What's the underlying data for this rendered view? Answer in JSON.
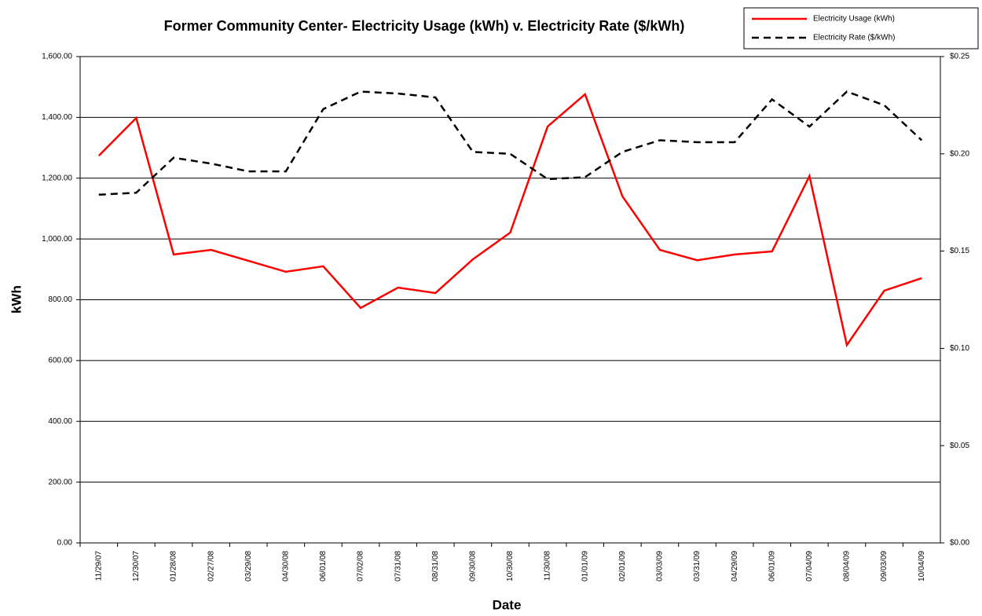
{
  "chart_data": {
    "type": "line",
    "title": "Former Community Center- Electricity Usage (kWh) v. Electricity Rate ($/kWh)",
    "xlabel": "Date",
    "ylabel": "kWh",
    "categories": [
      "11/29/07",
      "12/30/07",
      "01/28/08",
      "02/27/08",
      "03/29/08",
      "04/30/08",
      "06/01/08",
      "07/02/08",
      "07/31/08",
      "08/31/08",
      "09/30/08",
      "10/30/08",
      "11/30/08",
      "01/01/09",
      "02/01/09",
      "03/03/09",
      "03/31/09",
      "04/29/09",
      "06/01/09",
      "07/04/09",
      "08/04/09",
      "09/03/09",
      "10/04/09"
    ],
    "series": [
      {
        "name": "Electricity Usage (kWh)",
        "color": "#ff0000",
        "dash": "solid",
        "values": [
          1274,
          1398,
          949,
          964,
          928,
          892,
          910,
          773,
          840,
          822,
          933,
          1021,
          1370,
          1476,
          1140,
          964,
          930,
          949,
          959,
          1207,
          651,
          830,
          871
        ]
      },
      {
        "name": "Electricity Rate ($/kWh)",
        "color": "#000000",
        "dash": "dashed",
        "axis": "y2",
        "values": [
          0.179,
          0.18,
          0.198,
          0.195,
          0.191,
          0.191,
          0.223,
          0.232,
          0.231,
          0.229,
          0.201,
          0.2,
          0.187,
          0.188,
          0.201,
          0.207,
          0.206,
          0.206,
          0.228,
          0.214,
          0.232,
          0.225,
          0.207
        ]
      }
    ],
    "ylim": [
      0,
      1600
    ],
    "yticks": [
      {
        "value": 0,
        "label": "0.00"
      },
      {
        "value": 200,
        "label": "200.00"
      },
      {
        "value": 400,
        "label": "400.00"
      },
      {
        "value": 600,
        "label": "600.00"
      },
      {
        "value": 800,
        "label": "800.00"
      },
      {
        "value": 1000,
        "label": "1,000.00"
      },
      {
        "value": 1200,
        "label": "1,200.00"
      },
      {
        "value": 1400,
        "label": "1,400.00"
      },
      {
        "value": 1600,
        "label": "1,600.00"
      }
    ],
    "y2lim": [
      0,
      0.25
    ],
    "y2ticks": [
      {
        "value": 0,
        "label": "$0.00"
      },
      {
        "value": 0.05,
        "label": "$0.05"
      },
      {
        "value": 0.1,
        "label": "$0.10"
      },
      {
        "value": 0.15,
        "label": "$0.15"
      },
      {
        "value": 0.2,
        "label": "$0.20"
      },
      {
        "value": 0.25,
        "label": "$0.25"
      }
    ],
    "grid": true,
    "legend": "top-right"
  }
}
